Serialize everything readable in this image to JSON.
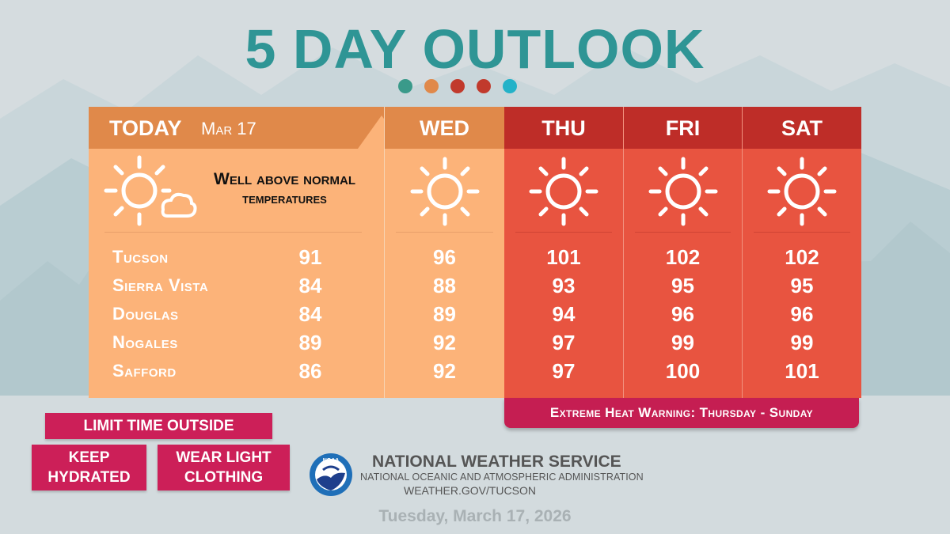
{
  "title": "5 DAY OUTLOOK",
  "dot_colors": [
    "#3a9a8a",
    "#e0894a",
    "#c13a2c",
    "#c13a2c",
    "#23b2c8"
  ],
  "today": {
    "label": "TODAY",
    "date": "Mar 17",
    "note_line1": "Well above normal",
    "note_line2": "temperatures",
    "icon": "sun-with-cloud-icon"
  },
  "cities": [
    "Tucson",
    "Sierra Vista",
    "Douglas",
    "Nogales",
    "Safford"
  ],
  "days": [
    {
      "label": "TODAY",
      "icon": "sun-icon",
      "temps": [
        "91",
        "84",
        "84",
        "89",
        "86"
      ]
    },
    {
      "label": "WED",
      "icon": "sun-icon",
      "temps": [
        "96",
        "88",
        "89",
        "92",
        "92"
      ]
    },
    {
      "label": "THU",
      "icon": "sun-icon",
      "temps": [
        "101",
        "93",
        "94",
        "97",
        "97"
      ]
    },
    {
      "label": "FRI",
      "icon": "sun-icon",
      "temps": [
        "102",
        "95",
        "96",
        "99",
        "100"
      ]
    },
    {
      "label": "SAT",
      "icon": "sun-icon",
      "temps": [
        "102",
        "95",
        "96",
        "99",
        "101"
      ]
    }
  ],
  "warning": "Extreme Heat Warning: Thursday - Sunday",
  "tips": {
    "limit": "LIMIT TIME OUTSIDE",
    "hydrate_1": "KEEP",
    "hydrate_2": "HYDRATED",
    "clothing_1": "WEAR LIGHT",
    "clothing_2": "CLOTHING"
  },
  "agency": {
    "logo": "noaa-logo",
    "logo_text": "NOAA",
    "name": "NATIONAL WEATHER SERVICE",
    "sub": "NATIONAL OCEANIC AND ATMOSPHERIC ADMINISTRATION",
    "url": "WEATHER.GOV/TUCSON"
  },
  "date": "Tuesday, March 17, 2026",
  "colors": {
    "teal": "#2f9595",
    "today_head": "#e0894a",
    "today_body": "#fcb379",
    "hot_head": "#be2d28",
    "hot_body": "#e85440",
    "warning": "#c51e52",
    "tip": "#cc1f58"
  }
}
